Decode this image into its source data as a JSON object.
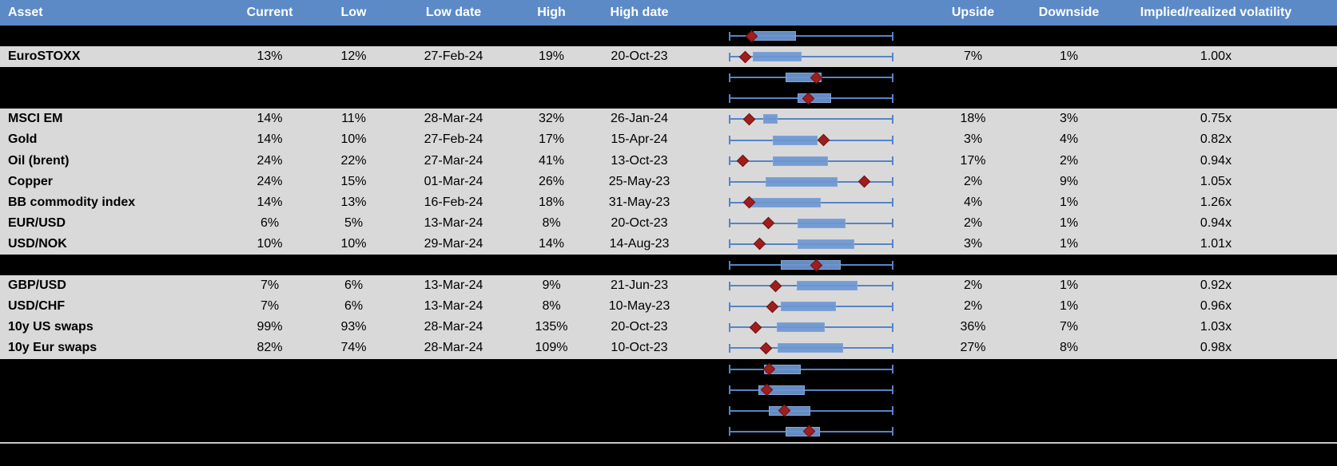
{
  "colors": {
    "header_bg": "#5b8ac7",
    "header_text": "#ffffff",
    "row_light_bg": "#d9d9d9",
    "row_dark_bg": "#000000",
    "whisker_blue": "#5585c6",
    "box_blue": "#6d97d1",
    "marker_red": "#9e1e1e",
    "bottom_divider": "#c8c8c8"
  },
  "chart_data": {
    "type": "table",
    "title": "Asset volatility overview with normalized box-whisker range plots",
    "columns": [
      "Asset",
      "Current",
      "Low",
      "Low date",
      "High",
      "High date",
      "",
      "Upside",
      "Downside",
      "Implied/realized volatility"
    ],
    "boxplot_note": "Each row plot: whisker spans full normalized low-high range (0 to 1); box_lo/box_hi are box edges and marker is the red diamond position as fractions of the whisker span.",
    "rows": [
      {
        "hidden": true,
        "asset": "",
        "current": "",
        "low": "",
        "low_date": "",
        "high": "",
        "high_date": "",
        "upside": "",
        "downside": "",
        "implied": "",
        "plot": {
          "box_lo": 0.147,
          "box_hi": 0.405,
          "marker": 0.136
        }
      },
      {
        "hidden": false,
        "asset": "EuroSTOXX",
        "current": "13%",
        "low": "12%",
        "low_date": "27-Feb-24",
        "high": "19%",
        "high_date": "20-Oct-23",
        "upside": "7%",
        "downside": "1%",
        "implied": "1.00x",
        "plot": {
          "box_lo": 0.142,
          "box_hi": 0.441,
          "marker": 0.098
        }
      },
      {
        "hidden": true,
        "asset": "",
        "current": "",
        "low": "",
        "low_date": "",
        "high": "",
        "high_date": "",
        "upside": "",
        "downside": "",
        "implied": "",
        "plot": {
          "box_lo": 0.343,
          "box_hi": 0.564,
          "marker": 0.534
        }
      },
      {
        "hidden": true,
        "asset": "",
        "current": "",
        "low": "",
        "low_date": "",
        "high": "",
        "high_date": "",
        "upside": "",
        "downside": "",
        "implied": "",
        "plot": {
          "box_lo": 0.417,
          "box_hi": 0.623,
          "marker": 0.485
        }
      },
      {
        "hidden": false,
        "asset": "MSCI EM",
        "current": "14%",
        "low": "11%",
        "low_date": "28-Mar-24",
        "high": "32%",
        "high_date": "26-Jan-24",
        "upside": "18%",
        "downside": "3%",
        "implied": "0.75x",
        "plot": {
          "box_lo": 0.206,
          "box_hi": 0.294,
          "marker": 0.118
        }
      },
      {
        "hidden": false,
        "asset": "Gold",
        "current": "14%",
        "low": "10%",
        "low_date": "27-Feb-24",
        "high": "17%",
        "high_date": "15-Apr-24",
        "upside": "3%",
        "downside": "4%",
        "implied": "0.82x",
        "plot": {
          "box_lo": 0.265,
          "box_hi": 0.539,
          "marker": 0.578
        }
      },
      {
        "hidden": false,
        "asset": "Oil (brent)",
        "current": "24%",
        "low": "22%",
        "low_date": "27-Mar-24",
        "high": "41%",
        "high_date": "13-Oct-23",
        "upside": "17%",
        "downside": "2%",
        "implied": "0.94x",
        "plot": {
          "box_lo": 0.265,
          "box_hi": 0.603,
          "marker": 0.083
        }
      },
      {
        "hidden": false,
        "asset": "Copper",
        "current": "24%",
        "low": "15%",
        "low_date": "01-Mar-24",
        "high": "26%",
        "high_date": "25-May-23",
        "upside": "2%",
        "downside": "9%",
        "implied": "1.05x",
        "plot": {
          "box_lo": 0.221,
          "box_hi": 0.662,
          "marker": 0.824
        }
      },
      {
        "hidden": false,
        "asset": "BB commodity index",
        "current": "14%",
        "low": "13%",
        "low_date": "16-Feb-24",
        "high": "18%",
        "high_date": "31-May-23",
        "upside": "4%",
        "downside": "1%",
        "implied": "1.26x",
        "plot": {
          "box_lo": 0.127,
          "box_hi": 0.559,
          "marker": 0.118
        }
      },
      {
        "hidden": false,
        "asset": "EUR/USD",
        "current": "6%",
        "low": "5%",
        "low_date": "13-Mar-24",
        "high": "8%",
        "high_date": "20-Oct-23",
        "upside": "2%",
        "downside": "1%",
        "implied": "0.94x",
        "plot": {
          "box_lo": 0.417,
          "box_hi": 0.711,
          "marker": 0.24
        }
      },
      {
        "hidden": false,
        "asset": "USD/NOK",
        "current": "10%",
        "low": "10%",
        "low_date": "29-Mar-24",
        "high": "14%",
        "high_date": "14-Aug-23",
        "upside": "3%",
        "downside": "1%",
        "implied": "1.01x",
        "plot": {
          "box_lo": 0.417,
          "box_hi": 0.765,
          "marker": 0.186
        }
      },
      {
        "hidden": true,
        "asset": "",
        "current": "",
        "low": "",
        "low_date": "",
        "high": "",
        "high_date": "",
        "upside": "",
        "downside": "",
        "implied": "",
        "plot": {
          "box_lo": 0.314,
          "box_hi": 0.681,
          "marker": 0.534
        }
      },
      {
        "hidden": false,
        "asset": "GBP/USD",
        "current": "7%",
        "low": "6%",
        "low_date": "13-Mar-24",
        "high": "9%",
        "high_date": "21-Jun-23",
        "upside": "2%",
        "downside": "1%",
        "implied": "0.92x",
        "plot": {
          "box_lo": 0.412,
          "box_hi": 0.784,
          "marker": 0.284
        }
      },
      {
        "hidden": false,
        "asset": "USD/CHF",
        "current": "7%",
        "low": "6%",
        "low_date": "13-Mar-24",
        "high": "8%",
        "high_date": "10-May-23",
        "upside": "2%",
        "downside": "1%",
        "implied": "0.96x",
        "plot": {
          "box_lo": 0.314,
          "box_hi": 0.652,
          "marker": 0.26
        }
      },
      {
        "hidden": false,
        "asset": "10y US swaps",
        "current": "99%",
        "low": "93%",
        "low_date": "28-Mar-24",
        "high": "135%",
        "high_date": "20-Oct-23",
        "upside": "36%",
        "downside": "7%",
        "implied": "1.03x",
        "plot": {
          "box_lo": 0.289,
          "box_hi": 0.583,
          "marker": 0.157
        }
      },
      {
        "hidden": false,
        "asset": "10y Eur swaps",
        "current": "82%",
        "low": "74%",
        "low_date": "28-Mar-24",
        "high": "109%",
        "high_date": "10-Oct-23",
        "upside": "27%",
        "downside": "8%",
        "implied": "0.98x",
        "plot": {
          "box_lo": 0.294,
          "box_hi": 0.696,
          "marker": 0.221
        }
      },
      {
        "hidden": true,
        "asset": "",
        "current": "",
        "low": "",
        "low_date": "",
        "high": "",
        "high_date": "",
        "upside": "",
        "downside": "",
        "implied": "",
        "plot": {
          "box_lo": 0.211,
          "box_hi": 0.436,
          "marker": 0.245
        }
      },
      {
        "hidden": true,
        "asset": "",
        "current": "",
        "low": "",
        "low_date": "",
        "high": "",
        "high_date": "",
        "upside": "",
        "downside": "",
        "implied": "",
        "plot": {
          "box_lo": 0.177,
          "box_hi": 0.461,
          "marker": 0.226
        }
      },
      {
        "hidden": true,
        "asset": "",
        "current": "",
        "low": "",
        "low_date": "",
        "high": "",
        "high_date": "",
        "upside": "",
        "downside": "",
        "implied": "",
        "plot": {
          "box_lo": 0.24,
          "box_hi": 0.495,
          "marker": 0.338
        }
      },
      {
        "hidden": true,
        "asset": "",
        "current": "",
        "low": "",
        "low_date": "",
        "high": "",
        "high_date": "",
        "upside": "",
        "downside": "",
        "implied": "",
        "plot": {
          "box_lo": 0.343,
          "box_hi": 0.554,
          "marker": 0.49
        }
      }
    ]
  }
}
